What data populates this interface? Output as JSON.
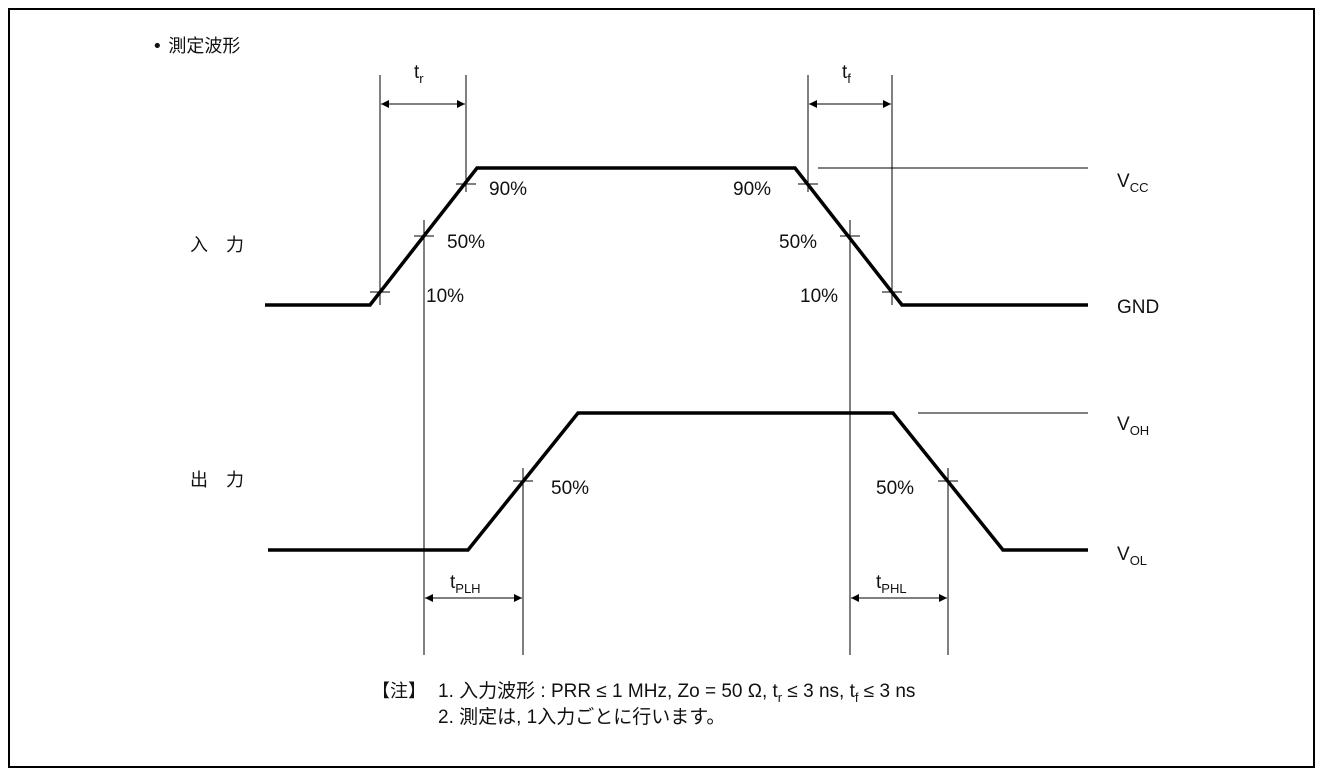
{
  "section_title": "• 測定波形",
  "input_label": "入　力",
  "output_label": "出　力",
  "percent_labels": {
    "p90_left": "90%",
    "p50_left": "50%",
    "p10_left": "10%",
    "p90_right": "90%",
    "p50_right": "50%",
    "p10_right": "10%",
    "out_50_left": "50%",
    "out_50_right": "50%"
  },
  "timing": {
    "tr": {
      "main": "t",
      "sub": "r"
    },
    "tf": {
      "main": "t",
      "sub": "f"
    },
    "tplh": {
      "main": "t",
      "sub": "PLH"
    },
    "tphl": {
      "main": "t",
      "sub": "PHL"
    }
  },
  "levels": {
    "vcc": {
      "main": "V",
      "sub": "CC"
    },
    "gnd": {
      "main": "GND"
    },
    "voh": {
      "main": "V",
      "sub": "OH"
    },
    "vol": {
      "main": "V",
      "sub": "OL"
    }
  },
  "note": {
    "head": "【注】",
    "line1": "1.  入力波形 : PRR ≤ 1 MHz, Zo = 50 Ω, t",
    "line1_tr_sub": "r",
    "line1_mid": " ≤ 3 ns, t",
    "line1_tf_sub": "f",
    "line1_end": " ≤ 3 ns",
    "line2": "2.  測定は, 1入力ごとに行います。"
  }
}
